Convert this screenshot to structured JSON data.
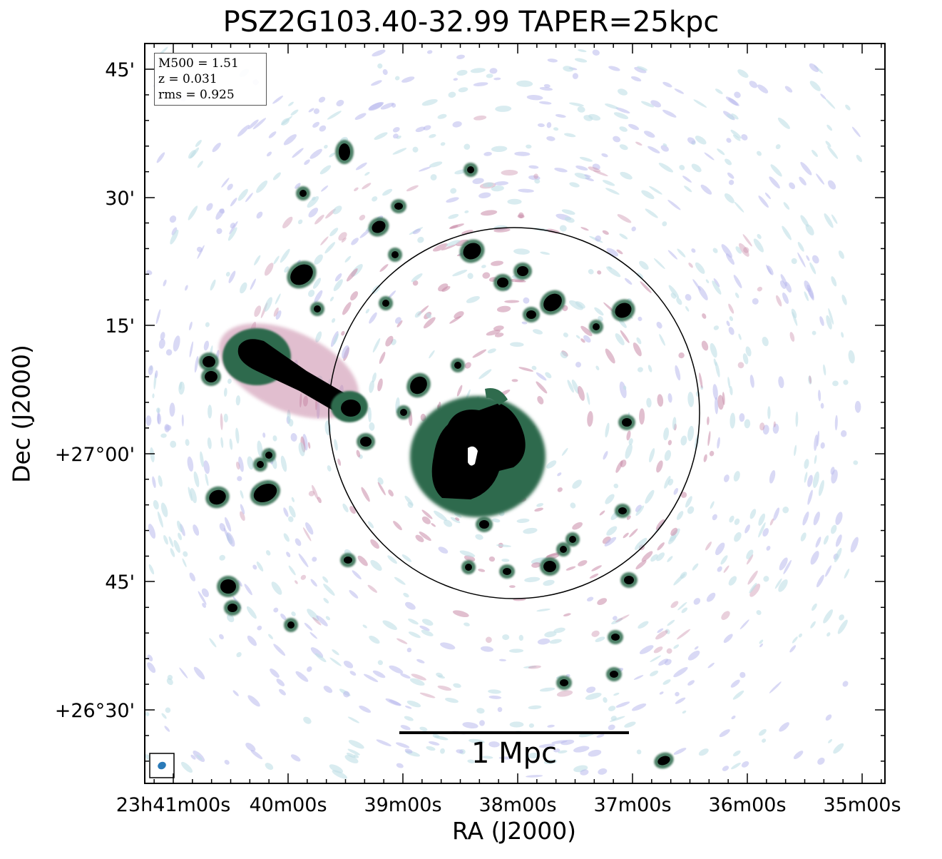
{
  "chart_data": {
    "type": "heatmap",
    "title": "PSZ2G103.40-32.99 TAPER=25kpc",
    "xlabel": "RA (J2000)",
    "ylabel": "Dec (J2000)",
    "x_ticks": [
      "23h41m00s",
      "40m00s",
      "39m00s",
      "38m00s",
      "37m00s",
      "36m00s",
      "35m00s"
    ],
    "y_ticks": [
      "+26°30'",
      "45'",
      "+27°00'",
      "15'",
      "30'",
      "45'"
    ],
    "annotations": {
      "m500": "M500 = 1.51",
      "z": "z = 0.031",
      "rms": "rms = 0.925"
    },
    "scale_bar": "1 Mpc",
    "colors": {
      "faint_cyan": "#bfe0e6",
      "faint_lavender": "#b9b9ec",
      "pink": "#c98aa8",
      "mauve": "#9c5f79",
      "green": "#2f6b4d",
      "dark": "#000000",
      "beam": "#2a7ab8"
    },
    "r500_circle": "black outline"
  }
}
